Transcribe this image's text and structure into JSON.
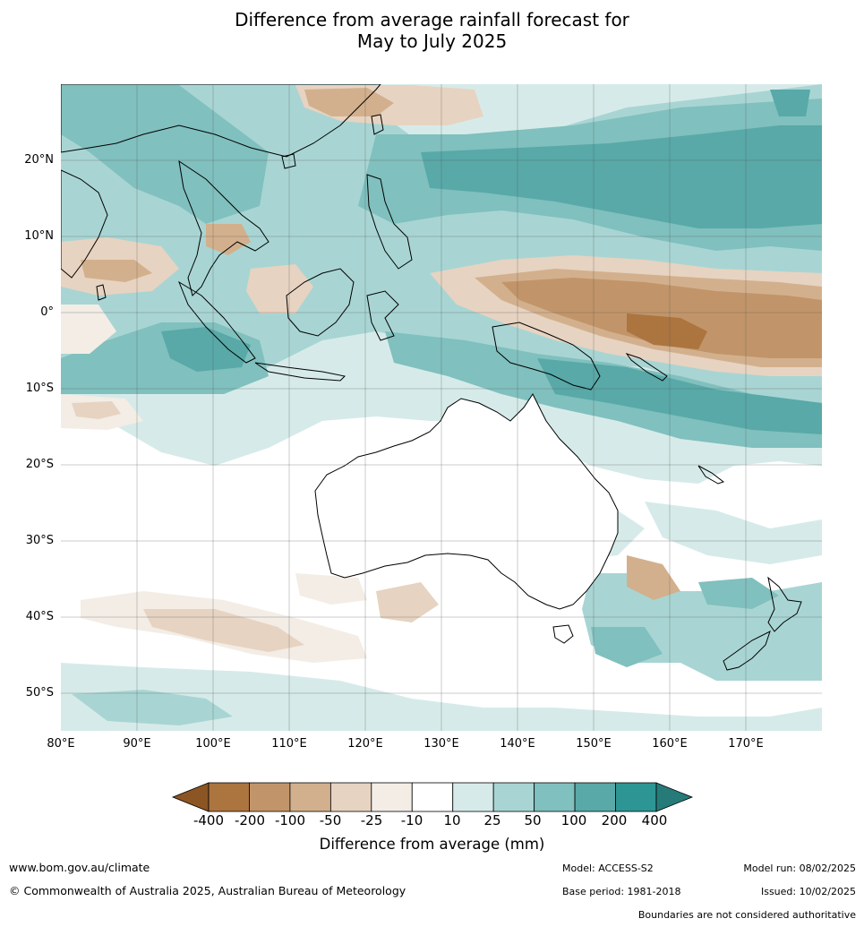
{
  "title": {
    "line1": "Difference from average rainfall forecast for",
    "line2": "May to July 2025"
  },
  "map": {
    "region": "Australia and surrounding region",
    "lat_labels": [
      "20°N",
      "10°N",
      "0°",
      "10°S",
      "20°S",
      "30°S",
      "40°S",
      "50°S"
    ],
    "lon_labels": [
      "80°E",
      "90°E",
      "100°E",
      "110°E",
      "120°E",
      "130°E",
      "140°E",
      "150°E",
      "160°E",
      "170°E"
    ]
  },
  "colorbar": {
    "title": "Difference from average (mm)",
    "ticks": [
      "-400",
      "-200",
      "-100",
      "-50",
      "-25",
      "-10",
      "10",
      "25",
      "50",
      "100",
      "200",
      "400"
    ],
    "colors": [
      "#8c5624",
      "#ac743f",
      "#c19569",
      "#d3b08d",
      "#e7d3c1",
      "#f3ede6",
      "#ffffff",
      "#d6ebe9",
      "#a8d5d3",
      "#80c0be",
      "#58a9a8",
      "#2d9694",
      "#267b79"
    ]
  },
  "footer": {
    "website": "www.bom.gov.au/climate",
    "copyright": "© Commonwealth of Australia 2025, Australian Bureau of Meteorology",
    "model": "Model: ACCESS-S2",
    "base_period": "Base period: 1981-2018",
    "model_run": "Model run: 08/02/2025",
    "issued": "Issued: 10/02/2025",
    "boundaries": "Boundaries are not considered authoritative"
  }
}
